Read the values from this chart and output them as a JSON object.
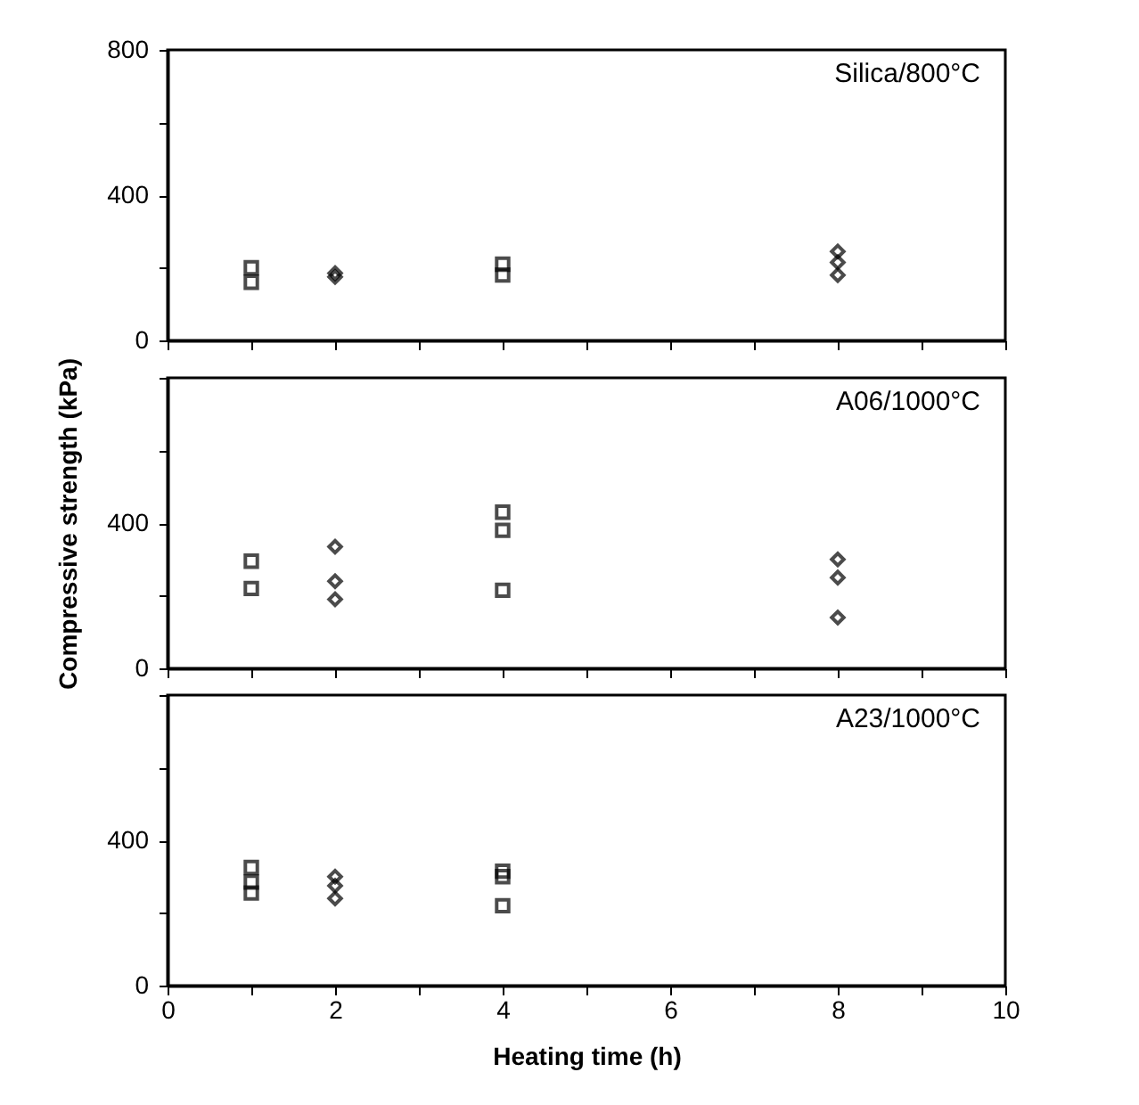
{
  "chart_data": [
    {
      "type": "scatter",
      "annotations": [
        "Silica/800°C"
      ],
      "xlim": [
        0,
        10
      ],
      "xticks": [
        0,
        {
          "value": 1,
          "label": null
        },
        2,
        {
          "value": 3,
          "label": null
        },
        4,
        {
          "value": 5,
          "label": null
        },
        6,
        {
          "value": 7,
          "label": null
        },
        8,
        {
          "value": 9,
          "label": null
        },
        10
      ],
      "ylim": [
        0,
        800
      ],
      "yticks": [
        0,
        {
          "value": 200,
          "label": null
        },
        400,
        {
          "value": 600,
          "label": null
        },
        800
      ],
      "tick_labels": "y",
      "grid": false,
      "series": [
        {
          "color": "#000000",
          "marker": "square",
          "x": [
            1,
            1
          ],
          "values": [
            200,
            160
          ]
        },
        {
          "color": "#000000",
          "marker": "diamond",
          "x": [
            2,
            2
          ],
          "values": [
            185,
            175
          ]
        },
        {
          "color": "#000000",
          "marker": "square",
          "x": [
            4,
            4
          ],
          "values": [
            210,
            180
          ]
        },
        {
          "color": "#000000",
          "marker": "diamond",
          "x": [
            8,
            8,
            8
          ],
          "values": [
            245,
            215,
            180
          ]
        }
      ]
    },
    {
      "type": "scatter",
      "annotations": [
        "A06/1000°C"
      ],
      "ylabel": "Compressive strength (kPa)",
      "xlim": [
        0,
        10
      ],
      "xticks": [
        0,
        {
          "value": 1,
          "label": null
        },
        2,
        {
          "value": 3,
          "label": null
        },
        4,
        {
          "value": 5,
          "label": null
        },
        6,
        {
          "value": 7,
          "label": null
        },
        8,
        {
          "value": 9,
          "label": null
        },
        10
      ],
      "ylim": [
        0,
        800
      ],
      "yticks": [
        0,
        {
          "value": 200,
          "label": null
        },
        400,
        {
          "value": 600,
          "label": null
        },
        {
          "value": 800,
          "label": null
        }
      ],
      "tick_labels": "y",
      "grid": false,
      "series": [
        {
          "color": "#000000",
          "marker": "square",
          "x": [
            1,
            1
          ],
          "values": [
            295,
            220
          ]
        },
        {
          "color": "#000000",
          "marker": "diamond",
          "x": [
            2,
            2,
            2
          ],
          "values": [
            335,
            240,
            190
          ]
        },
        {
          "color": "#000000",
          "marker": "square",
          "x": [
            4,
            4,
            4
          ],
          "values": [
            430,
            380,
            215
          ]
        },
        {
          "color": "#000000",
          "marker": "diamond",
          "x": [
            8,
            8,
            8
          ],
          "values": [
            300,
            250,
            140
          ]
        }
      ]
    },
    {
      "type": "scatter",
      "annotations": [
        "A23/1000°C"
      ],
      "xlabel": "Heating time (h)",
      "xlim": [
        0,
        10
      ],
      "xticks": [
        0,
        {
          "value": 1,
          "label": null
        },
        2,
        {
          "value": 3,
          "label": null
        },
        4,
        {
          "value": 5,
          "label": null
        },
        6,
        {
          "value": 7,
          "label": null
        },
        8,
        {
          "value": 9,
          "label": null
        },
        10
      ],
      "ylim": [
        0,
        800
      ],
      "yticks": [
        0,
        {
          "value": 200,
          "label": null
        },
        400,
        {
          "value": 600,
          "label": null
        },
        {
          "value": 800,
          "label": null
        }
      ],
      "grid": false,
      "series": [
        {
          "color": "#000000",
          "marker": "square",
          "x": [
            1,
            1,
            1
          ],
          "values": [
            325,
            285,
            255
          ]
        },
        {
          "color": "#000000",
          "marker": "diamond",
          "x": [
            2,
            2,
            2
          ],
          "values": [
            300,
            275,
            240
          ]
        },
        {
          "color": "#000000",
          "marker": "square",
          "x": [
            4,
            4,
            4
          ],
          "values": [
            315,
            300,
            220
          ]
        }
      ]
    }
  ]
}
